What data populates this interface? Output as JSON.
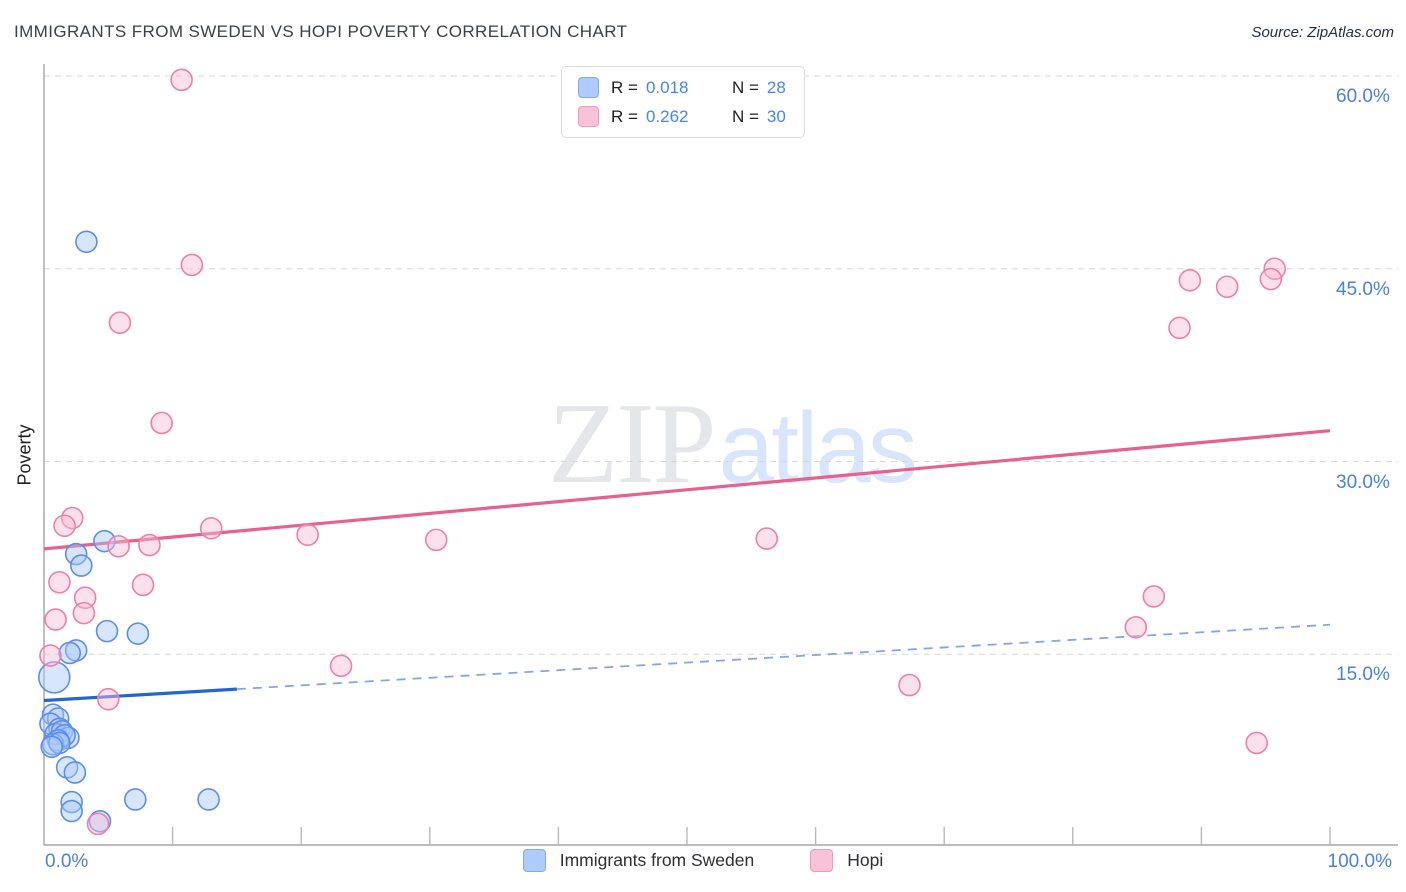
{
  "header": {
    "title": "IMMIGRANTS FROM SWEDEN VS HOPI POVERTY CORRELATION CHART",
    "source": "Source: ZipAtlas.com"
  },
  "watermark": {
    "zip": "ZIP",
    "atlas": "atlas"
  },
  "axes": {
    "y_axis_label": "Poverty",
    "x_min_label": "0.0%",
    "x_max_label": "100.0%",
    "y_ticks": [
      {
        "value": 60,
        "label": "60.0%"
      },
      {
        "value": 45,
        "label": "45.0%"
      },
      {
        "value": 30,
        "label": "30.0%"
      },
      {
        "value": 15,
        "label": "15.0%"
      }
    ],
    "x_tick_values": [
      10,
      20,
      30,
      40,
      50,
      60,
      70,
      80,
      90,
      100
    ]
  },
  "legend_box": {
    "rows": [
      {
        "series": "Immigrants from Sweden",
        "r_label": "R =",
        "r_value": "0.018",
        "n_label": "N =",
        "n_value": "28"
      },
      {
        "series": "Hopi",
        "r_label": "R =",
        "r_value": "0.262",
        "n_label": "N =",
        "n_value": "30"
      }
    ]
  },
  "bottom_legend": {
    "items": [
      {
        "label": "Immigrants from Sweden"
      },
      {
        "label": "Hopi"
      }
    ]
  },
  "colors": {
    "blue_point_stroke": "#5b8def",
    "blue_point_fill": "#a9c7f7",
    "pink_point_stroke": "#ef7fa9",
    "pink_point_fill": "#f7bcd4",
    "blue_trend": "#2166d3",
    "blue_trend_dashed": "#7fa6ee",
    "pink_trend": "#e8618c",
    "gridline": "#d7d7d7",
    "axis": "#a6a6a6",
    "tick_label_blue": "#4a80e0"
  },
  "chart_data": {
    "type": "scatter",
    "title": "IMMIGRANTS FROM SWEDEN VS HOPI POVERTY CORRELATION CHART",
    "xlabel": "",
    "ylabel": "Poverty",
    "xlim": [
      0,
      100
    ],
    "ylim": [
      0,
      62
    ],
    "x_units": "percent",
    "y_units": "percent",
    "y_gridlines": [
      15,
      30,
      45,
      60
    ],
    "grid": "dashed-horizontal",
    "legend_position": "top-center and bottom-center",
    "series": [
      {
        "name": "Immigrants from Sweden",
        "R": 0.018,
        "N": 28,
        "points": [
          [
            3.3,
            47.1
          ],
          [
            4.7,
            23.8
          ],
          [
            2.5,
            22.8
          ],
          [
            2.9,
            21.9
          ],
          [
            4.9,
            16.8
          ],
          [
            7.3,
            16.6
          ],
          [
            2.5,
            15.3
          ],
          [
            2.0,
            15.1
          ],
          [
            0.8,
            13.2,
            15.5
          ],
          [
            0.7,
            10.3
          ],
          [
            1.1,
            10.0
          ],
          [
            0.5,
            9.6
          ],
          [
            1.2,
            9.2
          ],
          [
            0.9,
            8.8
          ],
          [
            1.4,
            9.0
          ],
          [
            1.9,
            8.5
          ],
          [
            1.6,
            8.7
          ],
          [
            1.1,
            8.3
          ],
          [
            0.7,
            8.0
          ],
          [
            1.2,
            8.1
          ],
          [
            0.6,
            7.8
          ],
          [
            1.8,
            6.2
          ],
          [
            2.4,
            5.8
          ],
          [
            2.15,
            3.5
          ],
          [
            2.15,
            2.8
          ],
          [
            4.35,
            2.0
          ],
          [
            7.1,
            3.7
          ],
          [
            12.8,
            3.7
          ]
        ],
        "trend": {
          "start": [
            0,
            11.4
          ],
          "end": [
            100,
            17.3
          ],
          "solid_to_x": 15,
          "style": "solid-then-dashed"
        }
      },
      {
        "name": "Hopi",
        "R": 0.262,
        "N": 30,
        "points": [
          [
            10.7,
            59.7
          ],
          [
            11.5,
            45.3
          ],
          [
            5.9,
            40.8
          ],
          [
            9.15,
            33.0
          ],
          [
            2.2,
            25.6
          ],
          [
            1.6,
            25.0
          ],
          [
            5.8,
            23.4
          ],
          [
            8.2,
            23.5
          ],
          [
            13.0,
            24.8
          ],
          [
            20.5,
            24.3
          ],
          [
            30.5,
            23.9
          ],
          [
            56.2,
            24.0
          ],
          [
            1.2,
            20.6
          ],
          [
            7.7,
            20.4
          ],
          [
            3.2,
            19.4
          ],
          [
            3.1,
            18.2
          ],
          [
            0.9,
            17.7
          ],
          [
            0.5,
            14.9
          ],
          [
            5.0,
            11.5
          ],
          [
            4.2,
            1.8
          ],
          [
            23.1,
            14.1
          ],
          [
            67.3,
            12.6
          ],
          [
            86.3,
            19.5
          ],
          [
            84.9,
            17.1
          ],
          [
            88.3,
            40.4
          ],
          [
            89.1,
            44.1
          ],
          [
            92.0,
            43.6
          ],
          [
            95.7,
            45.0
          ],
          [
            95.4,
            44.2
          ],
          [
            94.3,
            8.1
          ]
        ],
        "trend": {
          "start": [
            0,
            23.2
          ],
          "end": [
            100,
            32.4
          ],
          "style": "solid"
        }
      }
    ]
  }
}
